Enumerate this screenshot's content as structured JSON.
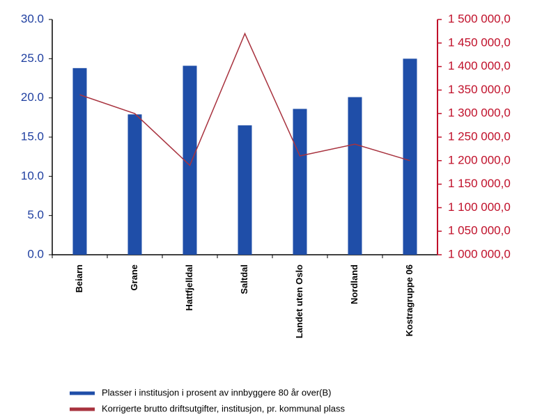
{
  "chart_data": {
    "type": "bar",
    "categories": [
      "Beiarn",
      "Grane",
      "Hattfjelldal",
      "Saltdal",
      "Landet uten Oslo",
      "Nordland",
      "Kostragruppe 06"
    ],
    "series": [
      {
        "name": "Plasser i institusjon i prosent av innbyggere 80 år over(B)",
        "color": "#1f4ea8",
        "type": "bar",
        "values": [
          23.8,
          17.9,
          24.1,
          16.5,
          18.6,
          20.1,
          25.0
        ]
      },
      {
        "name": "Korrigerte brutto driftsutgifter, institusjon, pr. kommunal plass",
        "color": "#a8323e",
        "type": "line",
        "axis": "y2",
        "values": [
          1340000,
          1300000,
          1190000,
          1470000,
          1210000,
          1235000,
          1200000
        ]
      }
    ],
    "ylim": [
      0,
      30
    ],
    "yticks": [
      {
        "value": 0,
        "label": "0.0"
      },
      {
        "value": 5,
        "label": "5.0"
      },
      {
        "value": 10,
        "label": "10.0"
      },
      {
        "value": 15,
        "label": "15.0"
      },
      {
        "value": 20,
        "label": "20.0"
      },
      {
        "value": 25,
        "label": "25.0"
      },
      {
        "value": 30,
        "label": "30.0"
      }
    ],
    "y2lim": [
      1000000,
      1500000
    ],
    "y2ticks": [
      {
        "value": 1000000,
        "label": "1 000 000,0"
      },
      {
        "value": 1050000,
        "label": "1 050 000,0"
      },
      {
        "value": 1100000,
        "label": "1 100 000,0"
      },
      {
        "value": 1150000,
        "label": "1 150 000,0"
      },
      {
        "value": 1200000,
        "label": "1 200 000,0"
      },
      {
        "value": 1250000,
        "label": "1 250 000,0"
      },
      {
        "value": 1300000,
        "label": "1 300 000,0"
      },
      {
        "value": 1350000,
        "label": "1 350 000,0"
      },
      {
        "value": 1400000,
        "label": "1 400 000,0"
      },
      {
        "value": 1450000,
        "label": "1 450 000,0"
      },
      {
        "value": 1500000,
        "label": "1 500 000,0"
      }
    ],
    "ycolor": "#1f3fa0",
    "y2color": "#c0102a",
    "grid": false
  }
}
